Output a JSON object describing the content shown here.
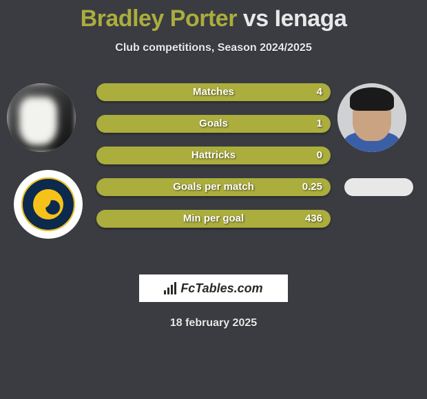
{
  "colors": {
    "background": "#3a3c42",
    "accent": "#abad3c",
    "text_light": "#e8e8e8",
    "white": "#ffffff",
    "brand_text": "#2a2a2a"
  },
  "header": {
    "player1_name": "Bradley Porter",
    "vs_text": "vs",
    "player2_name": "Ienaga",
    "subtitle": "Club competitions, Season 2024/2025"
  },
  "stats": [
    {
      "label": "Matches",
      "value": "4"
    },
    {
      "label": "Goals",
      "value": "1"
    },
    {
      "label": "Hattricks",
      "value": "0"
    },
    {
      "label": "Goals per match",
      "value": "0.25"
    },
    {
      "label": "Min per goal",
      "value": "436"
    }
  ],
  "brand": {
    "label": "FcTables.com"
  },
  "date": "18 february 2025",
  "style": {
    "pill_height": 26,
    "pill_radius": 13,
    "pill_gap": 20,
    "title_fontsize": 34,
    "subtitle_fontsize": 16,
    "stat_fontsize": 15,
    "avatar_diameter": 100
  }
}
